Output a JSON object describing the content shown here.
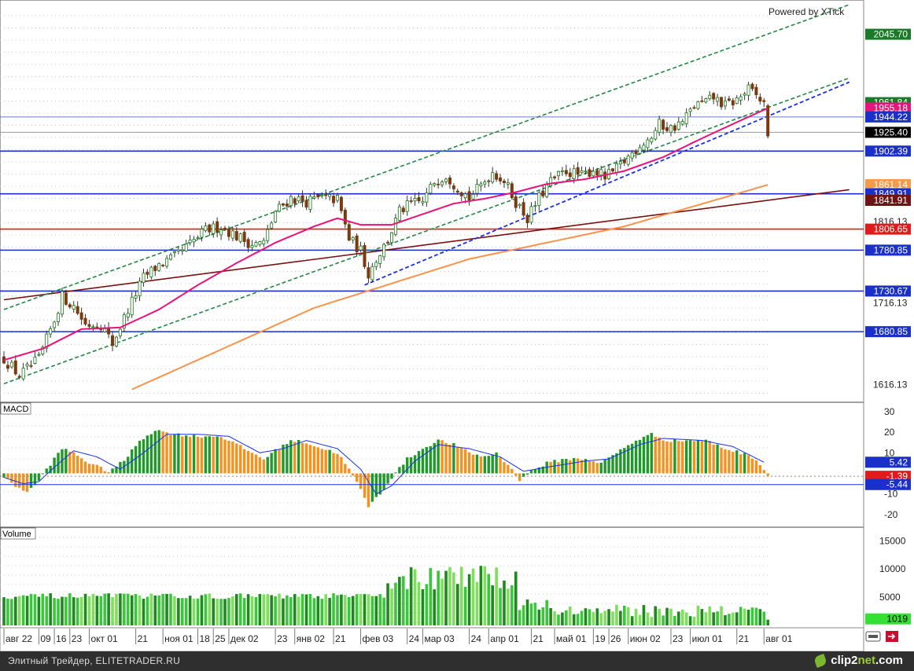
{
  "branding": {
    "powered_by": "Powered by XTick",
    "footer_text": "Элитный Трейдер, ELITETRADER.RU",
    "footer_brand_a": "clip2",
    "footer_brand_b": "net",
    "footer_brand_c": ".com"
  },
  "panels": {
    "macd_title": "MACD",
    "volume_title": "Volume"
  },
  "chart_data": [
    {
      "type": "candlestick",
      "name": "price",
      "ylim": [
        1600,
        2080
      ],
      "y_ticks": [
        "1616.13",
        "1716.13",
        "1816.13"
      ],
      "price_tags": [
        {
          "label": "2045.70",
          "value": 2045.7,
          "bg": "#1a7a2a",
          "fg": "#ffffff"
        },
        {
          "label": "1961.84",
          "value": 1961.84,
          "bg": "#1a7a2a",
          "fg": "#ffffff"
        },
        {
          "label": "1955.18",
          "value": 1955.18,
          "bg": "#e8137a",
          "fg": "#ffffff"
        },
        {
          "label": "1944.22",
          "value": 1944.22,
          "bg": "#1a30c8",
          "fg": "#ffffff"
        },
        {
          "label": "1925.40",
          "value": 1925.4,
          "bg": "#000000",
          "fg": "#ffffff"
        },
        {
          "label": "1902.39",
          "value": 1902.39,
          "bg": "#1a30c8",
          "fg": "#ffffff"
        },
        {
          "label": "1861.14",
          "value": 1861.14,
          "bg": "#f59a4b",
          "fg": "#ffffff"
        },
        {
          "label": "1849.91",
          "value": 1849.91,
          "bg": "#1a30c8",
          "fg": "#ffffff"
        },
        {
          "label": "1841.91",
          "value": 1841.91,
          "bg": "#6e1414",
          "fg": "#ffffff"
        },
        {
          "label": "1806.65",
          "value": 1806.65,
          "bg": "#e01b1b",
          "fg": "#ffffff"
        },
        {
          "label": "1780.85",
          "value": 1780.85,
          "bg": "#1a30c8",
          "fg": "#ffffff"
        },
        {
          "label": "1730.67",
          "value": 1730.67,
          "bg": "#1a30c8",
          "fg": "#ffffff"
        },
        {
          "label": "1680.85",
          "value": 1680.85,
          "bg": "#1a30c8",
          "fg": "#ffffff"
        }
      ],
      "horizontal_levels": [
        {
          "value": 1944.22,
          "color": "#6a7ad0"
        },
        {
          "value": 1925.4,
          "color": "#999999"
        },
        {
          "value": 1902.39,
          "color": "#1a30c8"
        },
        {
          "value": 1849.91,
          "color": "#1a30c8"
        },
        {
          "value": 1806.65,
          "color": "#e01b1b"
        },
        {
          "value": 1780.85,
          "color": "#1a30c8"
        },
        {
          "value": 1730.67,
          "color": "#1a30c8"
        },
        {
          "value": 1680.85,
          "color": "#1a30c8"
        }
      ],
      "anchors": [
        {
          "i": 0,
          "v": 1648
        },
        {
          "i": 4,
          "v": 1627
        },
        {
          "i": 9,
          "v": 1647
        },
        {
          "i": 13,
          "v": 1695
        },
        {
          "i": 15,
          "v": 1724
        },
        {
          "i": 18,
          "v": 1712
        },
        {
          "i": 21,
          "v": 1690
        },
        {
          "i": 25,
          "v": 1690
        },
        {
          "i": 28,
          "v": 1666
        },
        {
          "i": 32,
          "v": 1708
        },
        {
          "i": 36,
          "v": 1747
        },
        {
          "i": 40,
          "v": 1763
        },
        {
          "i": 44,
          "v": 1772
        },
        {
          "i": 48,
          "v": 1788
        },
        {
          "i": 52,
          "v": 1805
        },
        {
          "i": 56,
          "v": 1810
        },
        {
          "i": 60,
          "v": 1798
        },
        {
          "i": 64,
          "v": 1788
        },
        {
          "i": 67,
          "v": 1790
        },
        {
          "i": 70,
          "v": 1828
        },
        {
          "i": 74,
          "v": 1845
        },
        {
          "i": 78,
          "v": 1840
        },
        {
          "i": 82,
          "v": 1845
        },
        {
          "i": 86,
          "v": 1843
        },
        {
          "i": 89,
          "v": 1795
        },
        {
          "i": 92,
          "v": 1780
        },
        {
          "i": 94,
          "v": 1752
        },
        {
          "i": 96,
          "v": 1770
        },
        {
          "i": 99,
          "v": 1793
        },
        {
          "i": 102,
          "v": 1828
        },
        {
          "i": 105,
          "v": 1838
        },
        {
          "i": 108,
          "v": 1840
        },
        {
          "i": 111,
          "v": 1865
        },
        {
          "i": 114,
          "v": 1873
        },
        {
          "i": 117,
          "v": 1858
        },
        {
          "i": 120,
          "v": 1845
        },
        {
          "i": 123,
          "v": 1860
        },
        {
          "i": 126,
          "v": 1877
        },
        {
          "i": 129,
          "v": 1866
        },
        {
          "i": 132,
          "v": 1840
        },
        {
          "i": 135,
          "v": 1820
        },
        {
          "i": 138,
          "v": 1845
        },
        {
          "i": 141,
          "v": 1865
        },
        {
          "i": 145,
          "v": 1878
        },
        {
          "i": 149,
          "v": 1872
        },
        {
          "i": 152,
          "v": 1880
        },
        {
          "i": 155,
          "v": 1870
        },
        {
          "i": 158,
          "v": 1880
        },
        {
          "i": 161,
          "v": 1895
        },
        {
          "i": 164,
          "v": 1910
        },
        {
          "i": 167,
          "v": 1920
        },
        {
          "i": 169,
          "v": 1935
        },
        {
          "i": 172,
          "v": 1930
        },
        {
          "i": 175,
          "v": 1938
        },
        {
          "i": 178,
          "v": 1958
        },
        {
          "i": 181,
          "v": 1962
        },
        {
          "i": 183,
          "v": 1968
        },
        {
          "i": 186,
          "v": 1958
        },
        {
          "i": 189,
          "v": 1965
        },
        {
          "i": 192,
          "v": 1978
        },
        {
          "i": 194,
          "v": 1970
        },
        {
          "i": 196,
          "v": 1960
        },
        {
          "i": 197,
          "v": 1925
        }
      ],
      "ma_fast": [
        {
          "i": 0,
          "v": 1646
        },
        {
          "i": 10,
          "v": 1660
        },
        {
          "i": 20,
          "v": 1684
        },
        {
          "i": 30,
          "v": 1686
        },
        {
          "i": 40,
          "v": 1708
        },
        {
          "i": 50,
          "v": 1738
        },
        {
          "i": 60,
          "v": 1765
        },
        {
          "i": 70,
          "v": 1790
        },
        {
          "i": 80,
          "v": 1810
        },
        {
          "i": 86,
          "v": 1820
        },
        {
          "i": 92,
          "v": 1812
        },
        {
          "i": 100,
          "v": 1812
        },
        {
          "i": 108,
          "v": 1825
        },
        {
          "i": 116,
          "v": 1838
        },
        {
          "i": 124,
          "v": 1844
        },
        {
          "i": 132,
          "v": 1852
        },
        {
          "i": 140,
          "v": 1862
        },
        {
          "i": 150,
          "v": 1868
        },
        {
          "i": 160,
          "v": 1878
        },
        {
          "i": 170,
          "v": 1895
        },
        {
          "i": 180,
          "v": 1918
        },
        {
          "i": 190,
          "v": 1940
        },
        {
          "i": 197,
          "v": 1955
        }
      ],
      "ma_slow": [
        {
          "i": 33,
          "v": 1610
        },
        {
          "i": 80,
          "v": 1710
        },
        {
          "i": 120,
          "v": 1770
        },
        {
          "i": 160,
          "v": 1810
        },
        {
          "i": 197,
          "v": 1861
        }
      ],
      "trend_brown": [
        {
          "i": 0,
          "v": 1720
        },
        {
          "i": 218,
          "v": 1855
        }
      ],
      "channel_green_upper": [
        {
          "i": 0,
          "v": 1708
        },
        {
          "i": 218,
          "v": 2082
        }
      ],
      "channel_green_lower": [
        {
          "i": 0,
          "v": 1617
        },
        {
          "i": 218,
          "v": 1992
        }
      ],
      "trend_blue": [
        {
          "i": 93,
          "v": 1738
        },
        {
          "i": 218,
          "v": 1987
        }
      ],
      "x_labels": [
        {
          "i": 0,
          "label": "авг 22"
        },
        {
          "i": 9,
          "label": "09"
        },
        {
          "i": 13,
          "label": "16"
        },
        {
          "i": 17,
          "label": "23"
        },
        {
          "i": 22,
          "label": "окт 01"
        },
        {
          "i": 34,
          "label": "21"
        },
        {
          "i": 41,
          "label": "ноя 01"
        },
        {
          "i": 50,
          "label": "18"
        },
        {
          "i": 54,
          "label": "25"
        },
        {
          "i": 58,
          "label": "дек 02"
        },
        {
          "i": 70,
          "label": "23"
        },
        {
          "i": 75,
          "label": "янв 02"
        },
        {
          "i": 85,
          "label": "21"
        },
        {
          "i": 92,
          "label": "фев 03"
        },
        {
          "i": 104,
          "label": "24"
        },
        {
          "i": 108,
          "label": "мар 03"
        },
        {
          "i": 120,
          "label": "24"
        },
        {
          "i": 125,
          "label": "апр 01"
        },
        {
          "i": 136,
          "label": "21"
        },
        {
          "i": 142,
          "label": "май 01"
        },
        {
          "i": 152,
          "label": "19"
        },
        {
          "i": 156,
          "label": "26"
        },
        {
          "i": 161,
          "label": "июн 02"
        },
        {
          "i": 172,
          "label": "23"
        },
        {
          "i": 177,
          "label": "июл 01"
        },
        {
          "i": 189,
          "label": "21"
        },
        {
          "i": 196,
          "label": "авг 01"
        }
      ]
    },
    {
      "type": "histogram",
      "name": "MACD",
      "ylim": [
        -25,
        33
      ],
      "y_ticks": [
        "30",
        "20",
        "10",
        "-10",
        "-20"
      ],
      "tags": [
        {
          "label": "5.42",
          "value": 5.42,
          "bg": "#1a30c8",
          "fg": "#ffffff"
        },
        {
          "label": "-1.39",
          "value": -1.39,
          "bg": "#e01b1b",
          "fg": "#ffffff"
        },
        {
          "label": "-5.44",
          "value": -5.44,
          "bg": "#1a30c8",
          "fg": "#ffffff"
        }
      ],
      "ref_level": -5.44,
      "anchors": [
        {
          "i": 0,
          "v": -2
        },
        {
          "i": 3,
          "v": -6
        },
        {
          "i": 6,
          "v": -9
        },
        {
          "i": 8,
          "v": -6
        },
        {
          "i": 11,
          "v": 2
        },
        {
          "i": 15,
          "v": 12
        },
        {
          "i": 18,
          "v": 10
        },
        {
          "i": 22,
          "v": 5
        },
        {
          "i": 27,
          "v": 1
        },
        {
          "i": 31,
          "v": 6
        },
        {
          "i": 35,
          "v": 16
        },
        {
          "i": 39,
          "v": 21
        },
        {
          "i": 44,
          "v": 19
        },
        {
          "i": 50,
          "v": 18
        },
        {
          "i": 56,
          "v": 18
        },
        {
          "i": 62,
          "v": 12
        },
        {
          "i": 67,
          "v": 7
        },
        {
          "i": 70,
          "v": 11
        },
        {
          "i": 74,
          "v": 16
        },
        {
          "i": 78,
          "v": 15
        },
        {
          "i": 82,
          "v": 12
        },
        {
          "i": 86,
          "v": 10
        },
        {
          "i": 89,
          "v": 2
        },
        {
          "i": 92,
          "v": -8
        },
        {
          "i": 94,
          "v": -16
        },
        {
          "i": 97,
          "v": -10
        },
        {
          "i": 100,
          "v": -2
        },
        {
          "i": 104,
          "v": 7
        },
        {
          "i": 108,
          "v": 12
        },
        {
          "i": 112,
          "v": 16
        },
        {
          "i": 116,
          "v": 14
        },
        {
          "i": 120,
          "v": 10
        },
        {
          "i": 124,
          "v": 8
        },
        {
          "i": 127,
          "v": 10
        },
        {
          "i": 130,
          "v": 4
        },
        {
          "i": 133,
          "v": -3
        },
        {
          "i": 136,
          "v": 1
        },
        {
          "i": 140,
          "v": 5
        },
        {
          "i": 145,
          "v": 7
        },
        {
          "i": 150,
          "v": 7
        },
        {
          "i": 154,
          "v": 5
        },
        {
          "i": 158,
          "v": 10
        },
        {
          "i": 163,
          "v": 16
        },
        {
          "i": 167,
          "v": 19
        },
        {
          "i": 171,
          "v": 16
        },
        {
          "i": 176,
          "v": 16
        },
        {
          "i": 181,
          "v": 16
        },
        {
          "i": 186,
          "v": 12
        },
        {
          "i": 190,
          "v": 10
        },
        {
          "i": 194,
          "v": 7
        },
        {
          "i": 197,
          "v": -1
        }
      ],
      "signal": [
        {
          "i": 0,
          "v": -2
        },
        {
          "i": 5,
          "v": -5
        },
        {
          "i": 9,
          "v": -4
        },
        {
          "i": 13,
          "v": 3
        },
        {
          "i": 18,
          "v": 11
        },
        {
          "i": 24,
          "v": 8
        },
        {
          "i": 30,
          "v": 2
        },
        {
          "i": 36,
          "v": 10
        },
        {
          "i": 42,
          "v": 19
        },
        {
          "i": 50,
          "v": 19
        },
        {
          "i": 58,
          "v": 18
        },
        {
          "i": 66,
          "v": 10
        },
        {
          "i": 72,
          "v": 12
        },
        {
          "i": 78,
          "v": 16
        },
        {
          "i": 86,
          "v": 12
        },
        {
          "i": 92,
          "v": 2
        },
        {
          "i": 96,
          "v": -10
        },
        {
          "i": 100,
          "v": -6
        },
        {
          "i": 106,
          "v": 6
        },
        {
          "i": 112,
          "v": 14
        },
        {
          "i": 120,
          "v": 12
        },
        {
          "i": 128,
          "v": 8
        },
        {
          "i": 134,
          "v": 1
        },
        {
          "i": 140,
          "v": 3
        },
        {
          "i": 150,
          "v": 6
        },
        {
          "i": 156,
          "v": 7
        },
        {
          "i": 164,
          "v": 14
        },
        {
          "i": 170,
          "v": 17
        },
        {
          "i": 180,
          "v": 16
        },
        {
          "i": 188,
          "v": 13
        },
        {
          "i": 196,
          "v": 5.42
        }
      ]
    },
    {
      "type": "bar",
      "name": "Volume",
      "ylim": [
        0,
        17000
      ],
      "y_ticks": [
        "15000",
        "10000",
        "5000"
      ],
      "tags": [
        {
          "label": "1019",
          "value": 1019,
          "bg": "#35e035",
          "fg": "#000000"
        }
      ],
      "segments": [
        {
          "from": 0,
          "to": 98,
          "level": 5200,
          "jitter": 500
        },
        {
          "from": 99,
          "to": 132,
          "level": 8400,
          "jitter": 2200
        },
        {
          "from": 133,
          "to": 140,
          "level": 4000,
          "jitter": 1300
        },
        {
          "from": 141,
          "to": 196,
          "level": 2600,
          "jitter": 1100
        }
      ],
      "last": 1019
    }
  ]
}
